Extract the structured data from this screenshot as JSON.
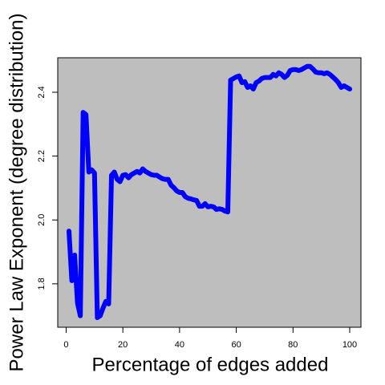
{
  "chart_data": {
    "type": "line",
    "x_label": "Percentage of edges added",
    "y_label": "Power Law Exponent (degree distribution)",
    "x": [
      1,
      2,
      3,
      4,
      5,
      6,
      7,
      8,
      9,
      10,
      11,
      12,
      13,
      14,
      15,
      16,
      17,
      18,
      19,
      20,
      21,
      22,
      23,
      24,
      25,
      26,
      27,
      28,
      29,
      30,
      31,
      32,
      33,
      34,
      35,
      36,
      37,
      38,
      39,
      40,
      41,
      42,
      43,
      44,
      45,
      46,
      47,
      48,
      49,
      50,
      51,
      52,
      53,
      54,
      55,
      56,
      57,
      58,
      59,
      60,
      61,
      62,
      63,
      64,
      65,
      66,
      67,
      68,
      69,
      70,
      71,
      72,
      73,
      74,
      75,
      76,
      77,
      78,
      79,
      80,
      81,
      82,
      83,
      84,
      85,
      86,
      87,
      88,
      89,
      90,
      91,
      92,
      93,
      94,
      95,
      96,
      97,
      98,
      99,
      100
    ],
    "values": [
      1.965,
      1.81,
      1.89,
      1.74,
      1.7,
      2.337,
      2.33,
      2.15,
      2.157,
      2.147,
      1.694,
      1.7,
      1.724,
      1.745,
      1.737,
      2.14,
      2.15,
      2.127,
      2.12,
      2.14,
      2.142,
      2.132,
      2.142,
      2.147,
      2.152,
      2.147,
      2.16,
      2.152,
      2.147,
      2.142,
      2.14,
      2.14,
      2.134,
      2.129,
      2.127,
      2.127,
      2.109,
      2.101,
      2.091,
      2.086,
      2.086,
      2.073,
      2.068,
      2.066,
      2.063,
      2.061,
      2.043,
      2.043,
      2.051,
      2.041,
      2.043,
      2.041,
      2.033,
      2.035,
      2.033,
      2.028,
      2.025,
      2.438,
      2.443,
      2.448,
      2.451,
      2.43,
      2.433,
      2.415,
      2.42,
      2.41,
      2.43,
      2.435,
      2.443,
      2.446,
      2.446,
      2.446,
      2.456,
      2.451,
      2.461,
      2.456,
      2.446,
      2.453,
      2.468,
      2.471,
      2.471,
      2.468,
      2.471,
      2.476,
      2.481,
      2.481,
      2.473,
      2.463,
      2.461,
      2.461,
      2.458,
      2.461,
      2.456,
      2.448,
      2.44,
      2.43,
      2.415,
      2.42,
      2.415,
      2.41
    ],
    "color": "#0000ff",
    "background": "#bebebe",
    "xlim": [
      -2.96,
      103.96
    ],
    "ylim": [
      1.664,
      2.508
    ],
    "xticks": [
      0,
      20,
      40,
      60,
      80,
      100
    ],
    "yticks": [
      1.8,
      {
        "value": 2.0,
        "label": "2.0"
      },
      2.2,
      2.4
    ]
  }
}
